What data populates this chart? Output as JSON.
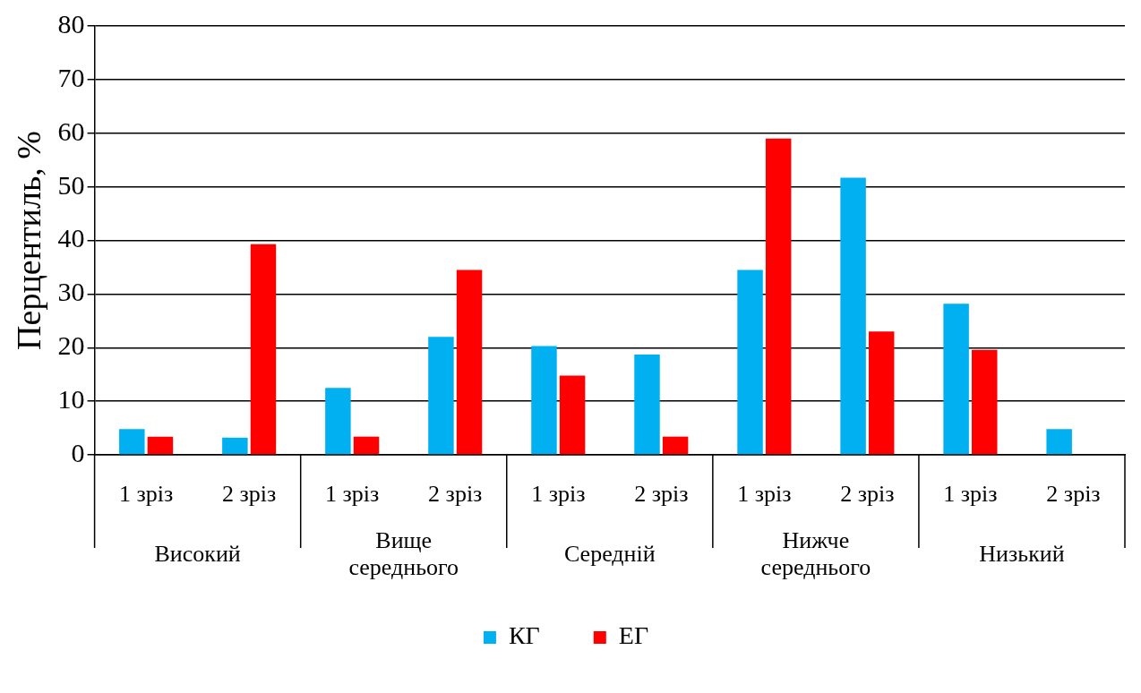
{
  "chart_data": {
    "type": "bar",
    "ylabel": "Перцентиль, %",
    "categories": [
      "1 зріз",
      "2 зріз",
      "1 зріз",
      "2 зріз",
      "1 зріз",
      "2 зріз",
      "1 зріз",
      "2 зріз",
      "1 зріз",
      "2 зріз"
    ],
    "series": [
      {
        "name": "КГ",
        "color": "#00b0f0",
        "values": [
          4.8,
          3.2,
          12.5,
          22,
          20.3,
          18.7,
          34.5,
          51.7,
          28.2,
          4.8
        ]
      },
      {
        "name": "ЕГ",
        "color": "#ff0000",
        "values": [
          3.4,
          39.3,
          3.4,
          34.5,
          14.8,
          3.4,
          59,
          23,
          19.6,
          null
        ]
      }
    ],
    "annotations": [
      "Високий",
      "Вище середнього",
      "Середній",
      "Нижче середнього",
      "Низький"
    ],
    "ylim": [
      0,
      80
    ],
    "yticks": [
      0,
      10,
      20,
      30,
      40,
      50,
      60,
      70,
      80
    ],
    "grid": "y",
    "legend": "bottom"
  }
}
